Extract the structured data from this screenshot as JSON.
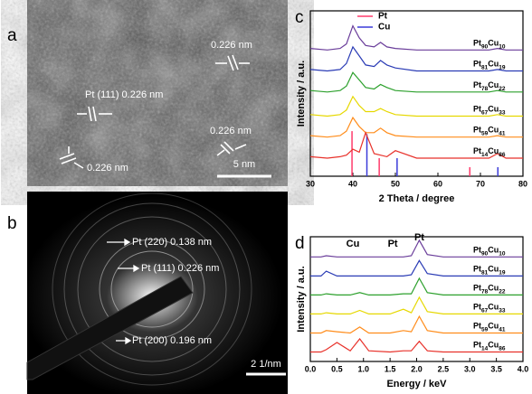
{
  "panels": {
    "a": {
      "label": "a",
      "annotations": [
        "0.226 nm",
        "Pt (111) 0.226 nm",
        "0.226 nm",
        "0.226 nm"
      ],
      "scale_bar": "5 nm"
    },
    "b": {
      "label": "b",
      "annotations": [
        "Pt (220) 0.138 nm",
        "Pt (111) 0.226 nm",
        "Pt (200) 0.196 nm"
      ],
      "scale_bar": "2 1/nm"
    }
  },
  "chart_data": [
    {
      "type": "line",
      "label": "c",
      "xlabel": "2 Theta / degree",
      "ylabel": "Intensity / a.u.",
      "xlim": [
        30,
        80
      ],
      "xticks": [
        30,
        40,
        50,
        60,
        70,
        80
      ],
      "ylim": [
        0,
        110
      ],
      "x": [
        30,
        34,
        37,
        38.5,
        40,
        41.5,
        43,
        45,
        46.5,
        48,
        50,
        55,
        60,
        65,
        70,
        72,
        74,
        76,
        80
      ],
      "series": [
        {
          "name": "Pt90Cu10",
          "color": "#6a3d9a",
          "values": [
            85,
            84,
            85,
            88,
            100,
            92,
            87,
            86,
            89,
            86,
            85,
            84,
            84,
            84,
            84,
            84,
            85,
            84,
            84
          ]
        },
        {
          "name": "Pt81Cu19",
          "color": "#2a3bb5",
          "values": [
            71,
            70,
            71,
            75,
            86,
            80,
            74,
            73,
            77,
            74,
            72,
            70,
            70,
            70,
            70,
            70,
            71,
            70,
            70
          ]
        },
        {
          "name": "Pt78Cu22",
          "color": "#2ca02c",
          "values": [
            57,
            56,
            57,
            60,
            69,
            64,
            59,
            58,
            61,
            59,
            57,
            56,
            56,
            56,
            56,
            56,
            57,
            56,
            56
          ]
        },
        {
          "name": "Pt67Cu33",
          "color": "#e6d800",
          "values": [
            41,
            40,
            41,
            44,
            53,
            47,
            43,
            43,
            45,
            43,
            41,
            40,
            40,
            40,
            40,
            40,
            41,
            40,
            40
          ]
        },
        {
          "name": "Pt59Cu41",
          "color": "#ff8c1a",
          "values": [
            27,
            26,
            27,
            30,
            39,
            33,
            29,
            29,
            32,
            29,
            27,
            26,
            26,
            26,
            26,
            26,
            27,
            26,
            26
          ]
        },
        {
          "name": "Pt14Cu86",
          "color": "#e8312a",
          "values": [
            13,
            12,
            13,
            14,
            18,
            16,
            29,
            15,
            14,
            13,
            17,
            12,
            12,
            12,
            12,
            12,
            15,
            12,
            12
          ]
        }
      ],
      "reference": [
        {
          "name": "Pt",
          "color": "#ff3b6b",
          "positions": [
            39.8,
            46.2,
            67.5
          ],
          "heights": [
            30,
            12,
            6
          ]
        },
        {
          "name": "Cu",
          "color": "#3b3bd9",
          "positions": [
            43.3,
            50.4,
            74.1
          ],
          "heights": [
            28,
            12,
            6
          ]
        }
      ]
    },
    {
      "type": "line",
      "label": "d",
      "xlabel": "Energy / keV",
      "ylabel": "Intensity / a.u.",
      "xlim": [
        0,
        4
      ],
      "xticks": [
        {
          "value": 0,
          "label": "0.0"
        },
        0.5,
        {
          "value": 1,
          "label": "1.0"
        },
        1.5,
        {
          "value": 2,
          "label": "2.0"
        },
        2.5,
        {
          "value": 3,
          "label": "3.0"
        },
        3.5,
        {
          "value": 4,
          "label": "4.0"
        }
      ],
      "ylim": [
        0,
        105
      ],
      "annotations": [
        "Cu",
        "Pt",
        "Pt"
      ],
      "x": [
        0,
        0.2,
        0.3,
        0.5,
        0.75,
        0.93,
        1.1,
        1.5,
        1.75,
        1.9,
        2.05,
        2.2,
        2.5,
        3,
        3.5,
        4
      ],
      "series": [
        {
          "name": "Pt90Cu10",
          "color": "#6a3d9a",
          "values": [
            88,
            88,
            89,
            88,
            88,
            88,
            88,
            88,
            88,
            89,
            102,
            90,
            88,
            88,
            88,
            88
          ]
        },
        {
          "name": "Pt81Cu19",
          "color": "#2a3bb5",
          "values": [
            72,
            72,
            76,
            72,
            72,
            72,
            72,
            72,
            72,
            73,
            85,
            74,
            72,
            72,
            72,
            72
          ]
        },
        {
          "name": "Pt78Cu22",
          "color": "#2ca02c",
          "values": [
            56,
            56,
            57,
            56,
            56,
            58,
            56,
            56,
            57,
            57,
            70,
            58,
            56,
            56,
            56,
            56
          ]
        },
        {
          "name": "Pt67Cu33",
          "color": "#e6d800",
          "values": [
            40,
            40,
            41,
            40,
            40,
            43,
            40,
            40,
            44,
            41,
            54,
            42,
            40,
            40,
            40,
            40
          ]
        },
        {
          "name": "Pt59Cu41",
          "color": "#ff8c1a",
          "values": [
            24,
            24,
            26,
            25,
            24,
            29,
            24,
            24,
            26,
            25,
            38,
            26,
            24,
            24,
            24,
            24
          ]
        },
        {
          "name": "Pt14Cu86",
          "color": "#e8312a",
          "values": [
            8,
            8,
            10,
            16,
            9,
            19,
            9,
            8,
            9,
            9,
            17,
            9,
            8,
            8,
            8,
            8
          ]
        }
      ]
    }
  ]
}
